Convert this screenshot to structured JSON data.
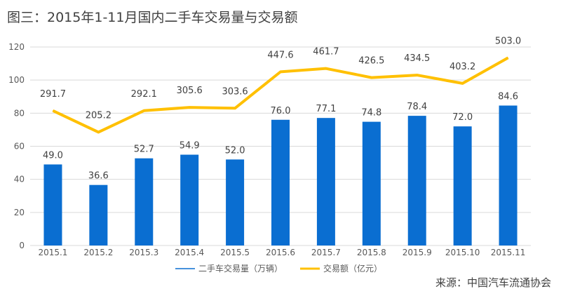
{
  "title": "图三：2015年1-11月国内二手车交易量与交易额",
  "source": "来源：中国汽车流通协会",
  "colors": {
    "bar": "#0A6ED1",
    "line": "#FFC000",
    "axis": "#D9D9D9"
  },
  "chart_data": {
    "type": "bar",
    "title": "图三：2015年1-11月国内二手车交易量与交易额",
    "categories": [
      "2015.1",
      "2015.2",
      "2015.3",
      "2015.4",
      "2015.5",
      "2015.6",
      "2015.7",
      "2015.8",
      "2015.9",
      "2015.10",
      "2015.11"
    ],
    "ylim": [
      0,
      120
    ],
    "yticks": [
      0,
      20,
      40,
      60,
      80,
      100,
      120
    ],
    "legend_position": "bottom",
    "series": [
      {
        "name": "二手车交易量（万辆）",
        "type": "bar",
        "values": [
          49.0,
          36.6,
          52.7,
          54.9,
          52.0,
          76.0,
          77.1,
          74.8,
          78.4,
          72.0,
          84.6
        ],
        "labels": [
          "49.0",
          "36.6",
          "52.7",
          "54.9",
          "52.0",
          "76.0",
          "77.1",
          "74.8",
          "78.4",
          "72.0",
          "84.6"
        ]
      },
      {
        "name": "交易额（亿元）",
        "type": "line",
        "values": [
          291.7,
          205.2,
          292.1,
          305.6,
          303.6,
          447.6,
          461.7,
          426.5,
          434.5,
          403.2,
          503.0
        ],
        "labels": [
          "291.7",
          "205.2",
          "292.1",
          "305.6",
          "303.6",
          "447.6",
          "461.7",
          "426.5",
          "434.5",
          "403.2",
          "503.0"
        ],
        "plotted_on_axis": [
          81.5,
          68.5,
          81.5,
          83.5,
          83.0,
          105.0,
          107.0,
          101.5,
          103.0,
          98.0,
          113.5
        ]
      }
    ]
  }
}
